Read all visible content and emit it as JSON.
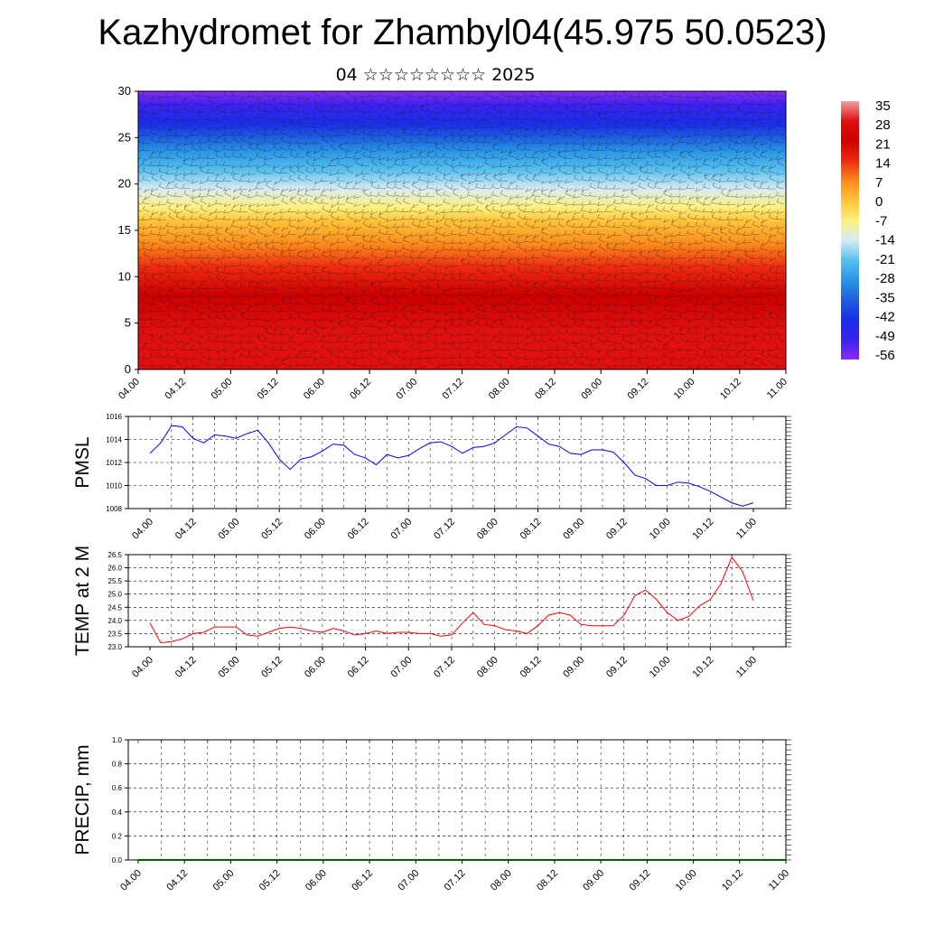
{
  "title": "Kazhydromet for Zhambyl04(45.975 50.0523)",
  "subtitle": "04 ☆☆☆☆☆☆☆☆ 2025",
  "time_ticks": [
    "04.00",
    "04.12",
    "05.00",
    "05.12",
    "06.00",
    "06.12",
    "07.00",
    "07.12",
    "08.00",
    "08.12",
    "09.00",
    "09.12",
    "10.00",
    "10.12",
    "11.00"
  ],
  "colors": {
    "pmsl_line": "#0000ff",
    "temp_line": "#ff0000",
    "precip_line": "#006400"
  },
  "chart_data": [
    {
      "type": "heatmap",
      "title": "",
      "ylabel": "",
      "ylim": [
        0,
        30
      ],
      "yticks": [
        0,
        5,
        10,
        15,
        20,
        25,
        30
      ],
      "x_range": [
        "04.00",
        "11.00"
      ],
      "colorbar": {
        "labels": [
          "35",
          "28",
          "21",
          "14",
          "7",
          "0",
          "-7",
          "-14",
          "-21",
          "-28",
          "-35",
          "-42",
          "-49",
          "-56"
        ],
        "stops": [
          {
            "value": 35,
            "color": "#f2a0a0"
          },
          {
            "value": 28,
            "color": "#e01010"
          },
          {
            "value": 21,
            "color": "#cc0000"
          },
          {
            "value": 14,
            "color": "#ee2a10"
          },
          {
            "value": 7,
            "color": "#fb8a1c"
          },
          {
            "value": 0,
            "color": "#ffc43a"
          },
          {
            "value": -7,
            "color": "#fff080"
          },
          {
            "value": -14,
            "color": "#d6ecf4"
          },
          {
            "value": -21,
            "color": "#58c0ee"
          },
          {
            "value": -28,
            "color": "#2a96e6"
          },
          {
            "value": -35,
            "color": "#1e5ee0"
          },
          {
            "value": -42,
            "color": "#1a2ee8"
          },
          {
            "value": -49,
            "color": "#3a22f0"
          },
          {
            "value": -56,
            "color": "#8a2cf0"
          }
        ]
      },
      "profile": [
        {
          "level": 0,
          "value": 24
        },
        {
          "level": 4,
          "value": 21
        },
        {
          "level": 8,
          "value": 14
        },
        {
          "level": 11,
          "value": 7
        },
        {
          "level": 13.5,
          "value": 0
        },
        {
          "level": 16,
          "value": -7
        },
        {
          "level": 17.5,
          "value": -14
        },
        {
          "level": 19.5,
          "value": -21
        },
        {
          "level": 21.5,
          "value": -28
        },
        {
          "level": 23.5,
          "value": -35
        },
        {
          "level": 25,
          "value": -42
        },
        {
          "level": 26.5,
          "value": -49
        },
        {
          "level": 28.5,
          "value": -56
        },
        {
          "level": 30,
          "value": -58
        }
      ],
      "overlay": "wind barbs"
    },
    {
      "type": "line",
      "ylabel": "PMSL",
      "ylim": [
        1008,
        1016
      ],
      "yticks": [
        1008,
        1010,
        1012,
        1014,
        1016
      ],
      "grid": true,
      "series": [
        {
          "values": [
            1012.8,
            1013.7,
            1015.2,
            1015.1,
            1014.1,
            1013.7,
            1014.4,
            1014.3,
            1014.1,
            1014.5,
            1014.8,
            1013.7,
            1012.3,
            1011.4,
            1012.3,
            1012.5,
            1013.0,
            1013.6,
            1013.5,
            1012.7,
            1012.4,
            1011.8,
            1012.7,
            1012.4,
            1012.6,
            1013.2,
            1013.7,
            1013.8,
            1013.4,
            1012.8,
            1013.3,
            1013.4,
            1013.7,
            1014.4,
            1015.1,
            1015.0,
            1014.3,
            1013.6,
            1013.4,
            1012.8,
            1012.7,
            1013.1,
            1013.1,
            1012.9,
            1012.0,
            1010.9,
            1010.6,
            1010.0,
            1010.0,
            1010.3,
            1010.2,
            1009.9,
            1009.5,
            1009.0,
            1008.5,
            1008.2,
            1008.5
          ]
        }
      ]
    },
    {
      "type": "line",
      "ylabel": "TEMP at 2 M",
      "ylim": [
        23.0,
        26.5
      ],
      "yticks": [
        "23.0",
        "23.5",
        "24.0",
        "24.5",
        "25.0",
        "25.5",
        "26.0",
        "26.5"
      ],
      "grid": true,
      "series": [
        {
          "values": [
            23.9,
            23.15,
            23.2,
            23.3,
            23.5,
            23.55,
            23.75,
            23.75,
            23.75,
            23.45,
            23.4,
            23.55,
            23.7,
            23.75,
            23.7,
            23.6,
            23.55,
            23.7,
            23.6,
            23.45,
            23.5,
            23.6,
            23.5,
            23.55,
            23.55,
            23.5,
            23.5,
            23.4,
            23.45,
            23.9,
            24.3,
            23.85,
            23.8,
            23.65,
            23.6,
            23.5,
            23.8,
            24.2,
            24.3,
            24.2,
            23.85,
            23.8,
            23.8,
            23.8,
            24.2,
            24.95,
            25.15,
            24.8,
            24.3,
            24.0,
            24.15,
            24.55,
            24.8,
            25.4,
            26.4,
            25.85,
            24.75
          ]
        }
      ]
    },
    {
      "type": "line",
      "ylabel": "PRECIP, mm",
      "ylim": [
        0.0,
        1.0
      ],
      "yticks": [
        "0.0",
        "0.2",
        "0.4",
        "0.6",
        "0.8",
        "1.0"
      ],
      "grid": true,
      "series": [
        {
          "values": [
            0,
            0,
            0,
            0,
            0,
            0,
            0,
            0,
            0,
            0,
            0,
            0,
            0,
            0,
            0,
            0,
            0,
            0,
            0,
            0,
            0,
            0,
            0,
            0,
            0,
            0,
            0,
            0,
            0,
            0,
            0,
            0,
            0,
            0,
            0,
            0,
            0,
            0,
            0,
            0,
            0,
            0,
            0,
            0,
            0,
            0,
            0,
            0,
            0,
            0,
            0,
            0,
            0,
            0,
            0,
            0,
            0
          ]
        }
      ]
    }
  ]
}
